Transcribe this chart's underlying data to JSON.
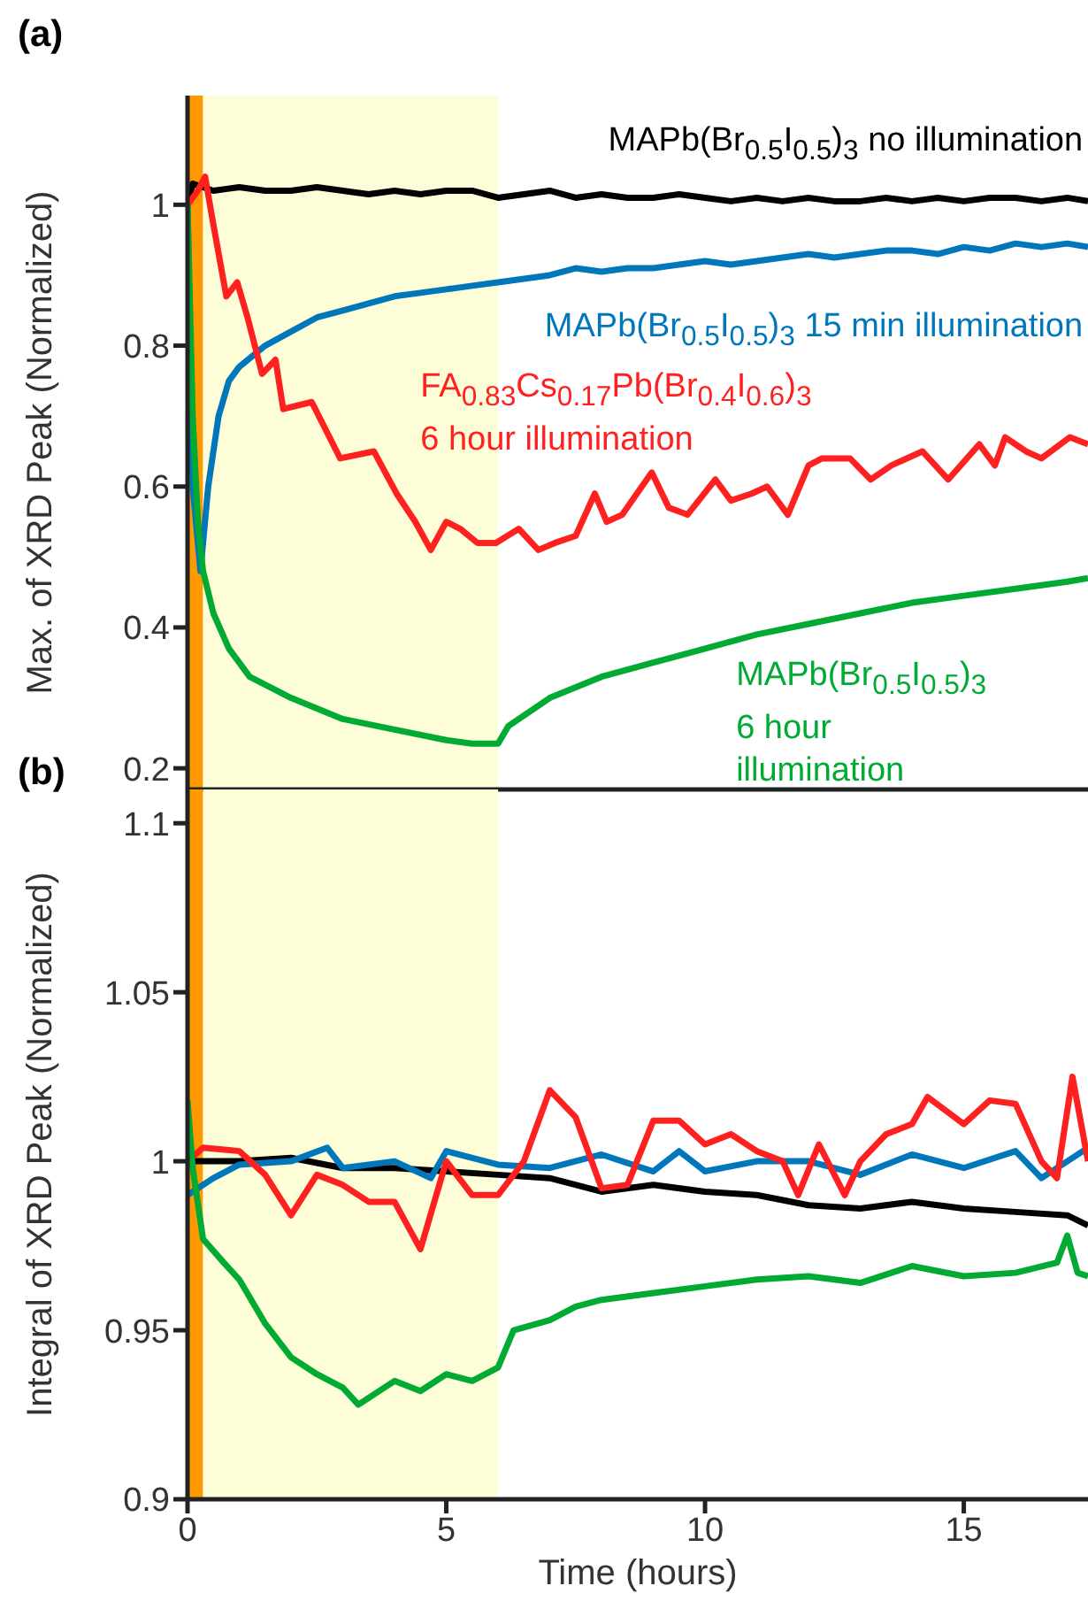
{
  "chart_data": [
    {
      "type": "line",
      "title": "(a)",
      "ylabel": "Max. of XRD Peak (Normalized)",
      "xlim": [
        0,
        17.4
      ],
      "xticks": [
        0,
        5,
        10,
        15
      ],
      "ylim": [
        0.17,
        1.155
      ],
      "yticks": [
        0.2,
        0.4,
        0.6,
        0.8,
        1
      ],
      "tick_labels": "y",
      "bands": [
        {
          "axis": "x",
          "from": 0,
          "to": 0.3,
          "color": "#ff9900"
        },
        {
          "axis": "x",
          "from": 0.3,
          "to": 6,
          "color": "#fdfdd8"
        }
      ],
      "series": [
        {
          "name": "MAPb(Br$_{0.5}$I$_{0.5}$)$_{3}$ no illumination",
          "color": "#000000",
          "x": [
            0,
            0.1,
            0.5,
            1,
            1.5,
            2,
            2.5,
            3,
            3.5,
            4,
            4.5,
            5,
            5.5,
            6,
            6.5,
            7,
            7.5,
            8,
            8.5,
            9,
            9.5,
            10,
            10.5,
            11,
            11.5,
            12,
            12.5,
            13,
            13.5,
            14,
            14.5,
            15,
            15.5,
            16,
            16.5,
            17,
            17.4
          ],
          "values": [
            1.0,
            1.03,
            1.02,
            1.025,
            1.02,
            1.02,
            1.025,
            1.02,
            1.015,
            1.02,
            1.015,
            1.02,
            1.02,
            1.01,
            1.015,
            1.02,
            1.01,
            1.015,
            1.01,
            1.01,
            1.015,
            1.01,
            1.005,
            1.01,
            1.005,
            1.01,
            1.005,
            1.005,
            1.01,
            1.005,
            1.01,
            1.005,
            1.01,
            1.01,
            1.005,
            1.01,
            1.005
          ]
        },
        {
          "name": "MAPb(Br$_{0.5}$I$_{0.5}$)$_{3}$ 15 min illumination",
          "color": "#0077bb",
          "x": [
            0,
            0.1,
            0.25,
            0.4,
            0.6,
            0.8,
            1,
            1.5,
            2,
            2.5,
            3,
            3.5,
            4,
            4.5,
            5,
            5.5,
            6,
            6.5,
            7,
            7.5,
            8,
            8.5,
            9,
            9.5,
            10,
            10.5,
            11,
            11.5,
            12,
            12.5,
            13,
            13.5,
            14,
            14.5,
            15,
            15.5,
            16,
            16.5,
            17,
            17.4
          ],
          "values": [
            1.0,
            0.6,
            0.48,
            0.6,
            0.7,
            0.75,
            0.77,
            0.8,
            0.82,
            0.84,
            0.85,
            0.86,
            0.87,
            0.875,
            0.88,
            0.885,
            0.89,
            0.895,
            0.9,
            0.91,
            0.905,
            0.91,
            0.91,
            0.915,
            0.92,
            0.915,
            0.92,
            0.925,
            0.93,
            0.925,
            0.93,
            0.935,
            0.935,
            0.93,
            0.94,
            0.935,
            0.945,
            0.94,
            0.945,
            0.94
          ]
        },
        {
          "name": "FA$_{0.83}$Cs$_{0.17}$Pb(Br$_{0.4}$I$_{0.6}$)$_{3}$ 6 hour illumination",
          "color": "#ff2020",
          "x": [
            0,
            0.2,
            0.34,
            0.48,
            0.75,
            0.96,
            1.16,
            1.44,
            1.7,
            1.85,
            2.4,
            2.95,
            3.6,
            4.04,
            4.4,
            4.7,
            5.0,
            5.27,
            5.6,
            5.96,
            6.4,
            6.78,
            7.1,
            7.5,
            7.87,
            8.1,
            8.4,
            8.97,
            9.3,
            9.66,
            10.2,
            10.5,
            10.9,
            11.2,
            11.6,
            12.0,
            12.26,
            12.8,
            13.2,
            13.6,
            14.2,
            14.7,
            15.3,
            15.6,
            15.8,
            16.2,
            16.5,
            17.05,
            17.4
          ],
          "values": [
            1.0,
            1.02,
            1.04,
            0.98,
            0.87,
            0.89,
            0.84,
            0.76,
            0.78,
            0.71,
            0.72,
            0.64,
            0.65,
            0.59,
            0.55,
            0.51,
            0.55,
            0.54,
            0.52,
            0.52,
            0.54,
            0.51,
            0.52,
            0.53,
            0.59,
            0.55,
            0.56,
            0.62,
            0.57,
            0.56,
            0.61,
            0.58,
            0.59,
            0.6,
            0.56,
            0.63,
            0.64,
            0.64,
            0.61,
            0.63,
            0.65,
            0.61,
            0.66,
            0.63,
            0.67,
            0.65,
            0.64,
            0.67,
            0.66
          ]
        },
        {
          "name": "MAPb(Br$_{0.5}$I$_{0.5}$)$_{3}$ 6 hour illumination",
          "color": "#00aa33",
          "x": [
            0,
            0.1,
            0.2,
            0.3,
            0.5,
            0.8,
            1.2,
            2,
            3,
            4,
            5,
            5.5,
            6,
            6.2,
            7,
            8,
            9,
            10,
            11,
            12,
            13,
            14,
            15,
            16,
            17,
            17.4
          ],
          "values": [
            1.0,
            0.7,
            0.55,
            0.48,
            0.42,
            0.37,
            0.33,
            0.3,
            0.27,
            0.255,
            0.24,
            0.235,
            0.235,
            0.26,
            0.3,
            0.33,
            0.35,
            0.37,
            0.39,
            0.405,
            0.42,
            0.435,
            0.445,
            0.455,
            0.465,
            0.47
          ]
        }
      ]
    },
    {
      "type": "line",
      "title": "(b)",
      "xlabel": "Time (hours)",
      "ylabel": "Integral of XRD Peak (Normalized)",
      "xlim": [
        0,
        17.4
      ],
      "xticks": [
        0,
        5,
        10,
        15
      ],
      "ylim": [
        0.9,
        1.11
      ],
      "yticks": [
        0.9,
        0.95,
        1,
        1.05,
        1.1
      ],
      "bands": [
        {
          "axis": "x",
          "from": 0,
          "to": 0.3,
          "color": "#ff9900"
        },
        {
          "axis": "x",
          "from": 0.3,
          "to": 6,
          "color": "#fdfdd8"
        }
      ],
      "series": [
        {
          "color": "#000000",
          "x": [
            0,
            1,
            2,
            3,
            4,
            5,
            6,
            7,
            8,
            9,
            10,
            11,
            12,
            13,
            14,
            15,
            16,
            17,
            17.4
          ],
          "values": [
            1.0,
            1.0,
            1.001,
            0.998,
            0.998,
            0.997,
            0.996,
            0.995,
            0.991,
            0.993,
            0.991,
            0.99,
            0.987,
            0.986,
            0.988,
            0.986,
            0.985,
            0.984,
            0.981
          ]
        },
        {
          "color": "#0077bb",
          "x": [
            0,
            0.5,
            1,
            2,
            2.7,
            3,
            4,
            4.7,
            5,
            6,
            7,
            8,
            9,
            9.5,
            10,
            11,
            12,
            13,
            14,
            15,
            16,
            16.5,
            17,
            17.4
          ],
          "values": [
            0.99,
            0.995,
            0.999,
            1.0,
            1.004,
            0.998,
            1.0,
            0.995,
            1.003,
            0.999,
            0.998,
            1.002,
            0.997,
            1.003,
            0.997,
            1.0,
            1.0,
            0.996,
            1.002,
            0.998,
            1.003,
            0.995,
            1.0,
            1.004
          ]
        },
        {
          "color": "#ff2020",
          "x": [
            0,
            0.3,
            1,
            1.5,
            2,
            2.5,
            3,
            3.5,
            4,
            4.5,
            5,
            5.5,
            6,
            6.5,
            7,
            7.5,
            8,
            8.5,
            9,
            9.5,
            10,
            10.5,
            11,
            11.5,
            11.8,
            12.2,
            12.7,
            13,
            13.5,
            14,
            14.3,
            15,
            15.5,
            16,
            16.5,
            16.8,
            17.1,
            17.4
          ],
          "values": [
            1.0,
            1.004,
            1.003,
            0.996,
            0.984,
            0.996,
            0.993,
            0.988,
            0.988,
            0.974,
            1.0,
            0.99,
            0.99,
            1.0,
            1.021,
            1.013,
            0.992,
            0.993,
            1.012,
            1.012,
            1.005,
            1.008,
            1.003,
            1.0,
            0.99,
            1.005,
            0.99,
            1.0,
            1.008,
            1.011,
            1.019,
            1.011,
            1.018,
            1.017,
            1.0,
            0.995,
            1.025,
            1.0
          ]
        },
        {
          "color": "#00aa33",
          "x": [
            0,
            0.1,
            0.3,
            0.7,
            1,
            1.5,
            2,
            2.5,
            3,
            3.3,
            4,
            4.5,
            5,
            5.5,
            6,
            6.3,
            7,
            7.5,
            8,
            9,
            10,
            11,
            12,
            13,
            14,
            15,
            16,
            16.8,
            17,
            17.2,
            17.4
          ],
          "values": [
            1.018,
            0.998,
            0.977,
            0.97,
            0.965,
            0.952,
            0.942,
            0.937,
            0.933,
            0.928,
            0.935,
            0.932,
            0.937,
            0.935,
            0.939,
            0.95,
            0.953,
            0.957,
            0.959,
            0.961,
            0.963,
            0.965,
            0.966,
            0.964,
            0.969,
            0.966,
            0.967,
            0.97,
            0.978,
            0.967,
            0.966
          ]
        }
      ]
    }
  ]
}
